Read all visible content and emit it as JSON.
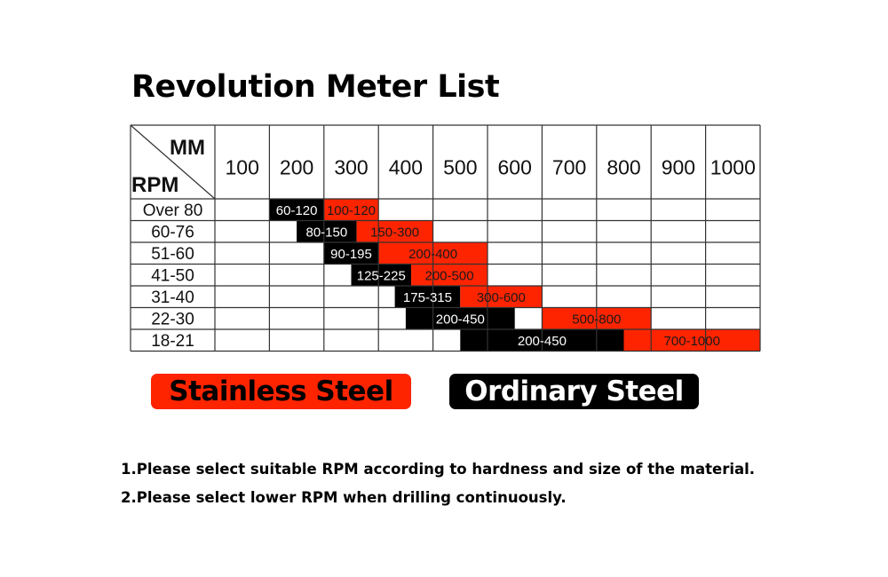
{
  "title": "Revolution Meter List",
  "table": {
    "corner_col_label": "MM",
    "corner_row_label": "RPM",
    "columns": [
      "100",
      "200",
      "300",
      "400",
      "500",
      "600",
      "700",
      "800",
      "900",
      "1000"
    ],
    "rows": [
      {
        "label": "Over 80",
        "ordinary": {
          "text": "60-120",
          "from": 1,
          "to": 2
        },
        "stainless": {
          "text": "100-120",
          "from": 2,
          "to": 3
        }
      },
      {
        "label": "60-76",
        "ordinary": {
          "text": "80-150",
          "from": 1.5,
          "to": 2.6
        },
        "stainless": {
          "text": "150-300",
          "from": 2.6,
          "to": 4
        }
      },
      {
        "label": "51-60",
        "ordinary": {
          "text": "90-195",
          "from": 2,
          "to": 3
        },
        "stainless": {
          "text": "200-400",
          "from": 3,
          "to": 5
        }
      },
      {
        "label": "41-50",
        "ordinary": {
          "text": "125-225",
          "from": 2.5,
          "to": 3.6
        },
        "stainless": {
          "text": "200-500",
          "from": 3.6,
          "to": 5
        }
      },
      {
        "label": "31-40",
        "ordinary": {
          "text": "175-315",
          "from": 3.3,
          "to": 4.5
        },
        "stainless": {
          "text": "300-600",
          "from": 4.5,
          "to": 6
        }
      },
      {
        "label": "22-30",
        "ordinary": {
          "text": "200-450",
          "from": 3.5,
          "to": 5.5
        },
        "stainless": {
          "text": "500-800",
          "from": 6,
          "to": 8
        }
      },
      {
        "label": "18-21",
        "ordinary": {
          "text": "200-450",
          "from": 4.5,
          "to": 7.5
        },
        "stainless": {
          "text": "700-1000",
          "from": 7.5,
          "to": 10
        }
      }
    ]
  },
  "legend": {
    "stainless": "Stainless Steel",
    "ordinary": "Ordinary Steel"
  },
  "notes": [
    "1.Please select suitable RPM according to hardness and size of the material.",
    "2.Please select lower RPM when drilling continuously."
  ],
  "colors": {
    "stainless": "#ff2400",
    "ordinary": "#000000",
    "grid": "#333333"
  }
}
